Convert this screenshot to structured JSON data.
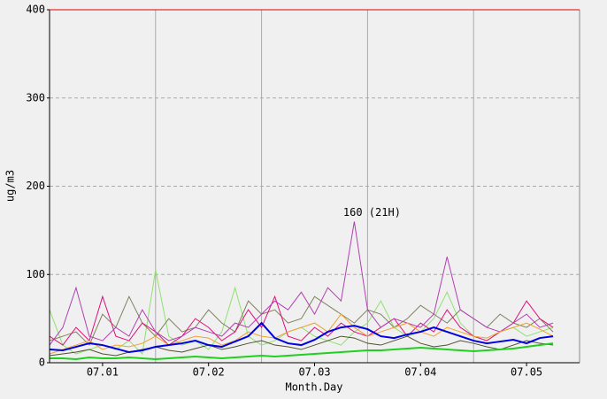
{
  "chart_data": {
    "type": "line",
    "y_label": "ug/m3",
    "x_label": "Month.Day",
    "xlim": [
      0.5,
      5.5
    ],
    "ylim": [
      0,
      400
    ],
    "xticks": [
      {
        "value": 1,
        "label": "07.01"
      },
      {
        "value": 2,
        "label": "07.02"
      },
      {
        "value": 3,
        "label": "07.03"
      },
      {
        "value": 4,
        "label": "07.04"
      },
      {
        "value": 5,
        "label": "07.05"
      }
    ],
    "x_gridlines": [
      1.5,
      2.5,
      3.5,
      4.5
    ],
    "yticks": [
      0,
      100,
      200,
      300,
      400
    ],
    "grid": true,
    "x": [
      0.5,
      0.625,
      0.75,
      0.875,
      1,
      1.125,
      1.25,
      1.375,
      1.5,
      1.625,
      1.75,
      1.875,
      2,
      2.125,
      2.25,
      2.375,
      2.5,
      2.625,
      2.75,
      2.875,
      3,
      3.125,
      3.25,
      3.375,
      3.5,
      3.625,
      3.75,
      3.875,
      4,
      4.125,
      4.25,
      4.375,
      4.5,
      4.625,
      4.75,
      4.875,
      5,
      5.125,
      5.25
    ],
    "series": [
      {
        "color": "#90e070",
        "values": [
          60,
          20,
          10,
          15,
          20,
          15,
          25,
          10,
          105,
          30,
          20,
          25,
          15,
          35,
          85,
          30,
          20,
          25,
          35,
          40,
          30,
          25,
          20,
          35,
          45,
          70,
          40,
          30,
          35,
          50,
          80,
          45,
          30,
          25,
          35,
          40,
          30,
          35,
          40
        ]
      },
      {
        "color": "#808060",
        "values": [
          25,
          30,
          35,
          20,
          55,
          40,
          75,
          45,
          30,
          50,
          35,
          40,
          60,
          45,
          35,
          70,
          55,
          60,
          45,
          50,
          75,
          65,
          55,
          45,
          60,
          55,
          40,
          50,
          65,
          55,
          45,
          60,
          50,
          40,
          55,
          45,
          40,
          50,
          35
        ]
      },
      {
        "color": "#e0107a",
        "values": [
          30,
          20,
          40,
          25,
          75,
          30,
          25,
          45,
          35,
          20,
          30,
          50,
          40,
          25,
          35,
          60,
          40,
          75,
          30,
          25,
          40,
          30,
          45,
          35,
          30,
          40,
          50,
          30,
          45,
          35,
          60,
          40,
          30,
          25,
          35,
          45,
          70,
          50,
          40
        ]
      },
      {
        "color": "#b040b0",
        "values": [
          20,
          40,
          85,
          30,
          25,
          40,
          30,
          60,
          35,
          25,
          30,
          40,
          35,
          30,
          45,
          40,
          55,
          70,
          60,
          80,
          55,
          85,
          70,
          160,
          60,
          40,
          50,
          45,
          40,
          55,
          120,
          60,
          50,
          40,
          35,
          45,
          55,
          40,
          45
        ]
      },
      {
        "color": "#f0a030",
        "values": [
          10,
          15,
          20,
          25,
          15,
          20,
          18,
          22,
          30,
          20,
          25,
          30,
          28,
          20,
          25,
          35,
          30,
          28,
          35,
          40,
          45,
          35,
          55,
          40,
          30,
          35,
          40,
          45,
          35,
          30,
          40,
          35,
          30,
          28,
          35,
          40,
          45,
          38,
          30
        ]
      },
      {
        "color": "#505030",
        "values": [
          8,
          10,
          12,
          15,
          10,
          8,
          12,
          15,
          18,
          14,
          12,
          16,
          20,
          15,
          18,
          22,
          25,
          20,
          18,
          15,
          20,
          25,
          30,
          28,
          22,
          20,
          25,
          30,
          22,
          18,
          20,
          25,
          22,
          18,
          15,
          20,
          25,
          22,
          20
        ]
      },
      {
        "color": "#0000e0",
        "values": [
          15,
          14,
          18,
          22,
          20,
          16,
          12,
          14,
          18,
          20,
          22,
          25,
          20,
          18,
          24,
          30,
          45,
          28,
          22,
          20,
          26,
          35,
          40,
          42,
          38,
          30,
          28,
          32,
          35,
          40,
          35,
          30,
          25,
          22,
          24,
          26,
          22,
          28,
          30
        ]
      },
      {
        "color": "#20d020",
        "values": [
          5,
          5,
          4,
          6,
          5,
          5,
          6,
          5,
          4,
          5,
          6,
          7,
          6,
          5,
          6,
          7,
          8,
          7,
          8,
          9,
          10,
          11,
          12,
          13,
          14,
          14,
          15,
          16,
          17,
          16,
          15,
          14,
          13,
          14,
          15,
          16,
          18,
          20,
          22
        ]
      }
    ],
    "annotation": {
      "text": "160 (21H)",
      "x": 3.375,
      "y": 160
    }
  }
}
